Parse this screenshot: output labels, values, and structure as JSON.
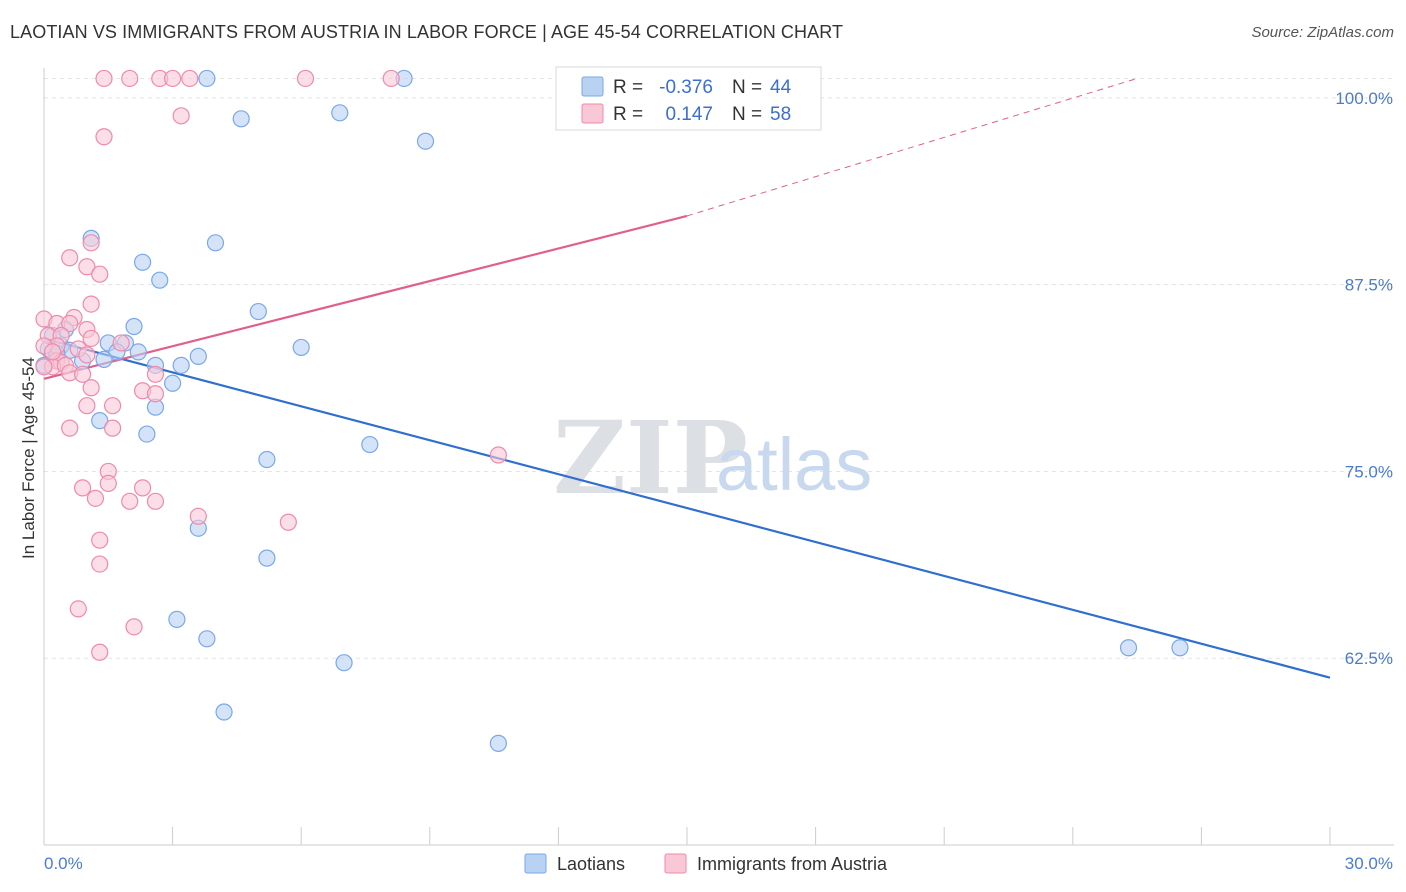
{
  "header": {
    "title": "LAOTIAN VS IMMIGRANTS FROM AUSTRIA IN LABOR FORCE | AGE 45-54 CORRELATION CHART",
    "source": "Source: ZipAtlas.com"
  },
  "watermark": {
    "zip": "ZIP",
    "atlas": "atlas"
  },
  "chart_data": {
    "type": "scatter",
    "title": "LAOTIAN VS IMMIGRANTS FROM AUSTRIA IN LABOR FORCE | AGE 45-54 CORRELATION CHART",
    "xlabel": "",
    "ylabel": "In Labor Force | Age 45-54",
    "xlim": [
      0,
      30
    ],
    "ylim": [
      50,
      102
    ],
    "x_tick_labels": {
      "min": "0.0%",
      "max": "30.0%"
    },
    "y_ticks": [
      {
        "value": 100,
        "label": "100.0%"
      },
      {
        "value": 87.5,
        "label": "87.5%"
      },
      {
        "value": 75,
        "label": "75.0%"
      },
      {
        "value": 62.5,
        "label": "62.5%"
      }
    ],
    "legend": {
      "r_label": "R =",
      "n_label": "N =",
      "entries": [
        {
          "r": "-0.376",
          "n": "44"
        },
        {
          "r": "0.147",
          "n": "58"
        }
      ]
    },
    "series": [
      {
        "name": "Laotians",
        "color": "#7aa8e8",
        "fill": "#b9d1f3",
        "line_color": "#2f6fd0",
        "trend": {
          "x0": 0,
          "y0": 83.9,
          "x1": 30,
          "y1": 61.2
        },
        "points": [
          [
            3.8,
            101.3
          ],
          [
            8.4,
            101.3
          ],
          [
            4.6,
            98.6
          ],
          [
            6.9,
            99.0
          ],
          [
            8.9,
            97.1
          ],
          [
            1.1,
            90.6
          ],
          [
            4.0,
            90.3
          ],
          [
            2.3,
            89.0
          ],
          [
            2.7,
            87.8
          ],
          [
            5.0,
            85.7
          ],
          [
            2.1,
            84.7
          ],
          [
            0.5,
            84.5
          ],
          [
            0.2,
            84.1
          ],
          [
            1.5,
            83.6
          ],
          [
            1.9,
            83.6
          ],
          [
            0.4,
            83.4
          ],
          [
            6.0,
            83.3
          ],
          [
            0.1,
            83.2
          ],
          [
            0.6,
            83.1
          ],
          [
            1.7,
            83.0
          ],
          [
            2.2,
            83.0
          ],
          [
            0.3,
            82.7
          ],
          [
            1.4,
            82.5
          ],
          [
            3.6,
            82.7
          ],
          [
            0.9,
            82.4
          ],
          [
            2.6,
            82.1
          ],
          [
            3.2,
            82.1
          ],
          [
            0.0,
            82.1
          ],
          [
            3.0,
            80.9
          ],
          [
            2.6,
            79.3
          ],
          [
            1.3,
            78.4
          ],
          [
            2.4,
            77.5
          ],
          [
            7.6,
            76.8
          ],
          [
            5.2,
            75.8
          ],
          [
            3.6,
            71.2
          ],
          [
            5.2,
            69.2
          ],
          [
            3.1,
            65.1
          ],
          [
            3.8,
            63.8
          ],
          [
            7.0,
            62.2
          ],
          [
            25.3,
            63.2
          ],
          [
            26.5,
            63.2
          ],
          [
            4.2,
            58.9
          ],
          [
            10.6,
            56.8
          ],
          [
            0.3,
            82.9
          ]
        ]
      },
      {
        "name": "Immigrants from Austria",
        "color": "#f08aaa",
        "fill": "#f9c8d7",
        "line_color": "#e0608a",
        "trend": {
          "x0": 0,
          "y0": 81.2,
          "x1": 15,
          "y1": 92.1
        },
        "trend_dashed": {
          "x0": 15,
          "y0": 92.1,
          "x1": 25.5,
          "y1": 101.3
        },
        "points": [
          [
            1.4,
            101.3
          ],
          [
            2.0,
            101.3
          ],
          [
            2.7,
            101.3
          ],
          [
            3.0,
            101.3
          ],
          [
            3.4,
            101.3
          ],
          [
            6.1,
            101.3
          ],
          [
            8.1,
            101.3
          ],
          [
            3.2,
            98.8
          ],
          [
            1.4,
            97.4
          ],
          [
            1.1,
            90.3
          ],
          [
            0.6,
            89.3
          ],
          [
            1.0,
            88.7
          ],
          [
            1.3,
            88.2
          ],
          [
            1.1,
            86.2
          ],
          [
            0.7,
            85.3
          ],
          [
            0.0,
            85.2
          ],
          [
            0.3,
            84.9
          ],
          [
            0.6,
            84.9
          ],
          [
            1.0,
            84.5
          ],
          [
            0.1,
            84.1
          ],
          [
            0.4,
            84.1
          ],
          [
            1.1,
            83.9
          ],
          [
            1.8,
            83.6
          ],
          [
            0.3,
            83.4
          ],
          [
            0.0,
            83.4
          ],
          [
            0.8,
            83.2
          ],
          [
            1.0,
            82.8
          ],
          [
            0.3,
            82.4
          ],
          [
            0.4,
            82.3
          ],
          [
            0.2,
            82.0
          ],
          [
            0.0,
            82.0
          ],
          [
            0.5,
            82.1
          ],
          [
            0.6,
            81.6
          ],
          [
            0.9,
            81.5
          ],
          [
            2.6,
            81.5
          ],
          [
            1.1,
            80.6
          ],
          [
            2.3,
            80.4
          ],
          [
            2.6,
            80.2
          ],
          [
            1.0,
            79.4
          ],
          [
            1.6,
            79.4
          ],
          [
            0.6,
            77.9
          ],
          [
            1.6,
            77.9
          ],
          [
            10.6,
            76.1
          ],
          [
            1.5,
            75.0
          ],
          [
            1.5,
            74.2
          ],
          [
            0.9,
            73.9
          ],
          [
            2.3,
            73.9
          ],
          [
            1.2,
            73.2
          ],
          [
            2.0,
            73.0
          ],
          [
            2.6,
            73.0
          ],
          [
            3.6,
            72.0
          ],
          [
            5.7,
            71.6
          ],
          [
            1.3,
            70.4
          ],
          [
            1.3,
            68.8
          ],
          [
            0.8,
            65.8
          ],
          [
            2.1,
            64.6
          ],
          [
            1.3,
            62.9
          ],
          [
            0.2,
            83.0
          ]
        ]
      }
    ]
  },
  "bottom_legend": [
    "Laotians",
    "Immigrants from Austria"
  ]
}
